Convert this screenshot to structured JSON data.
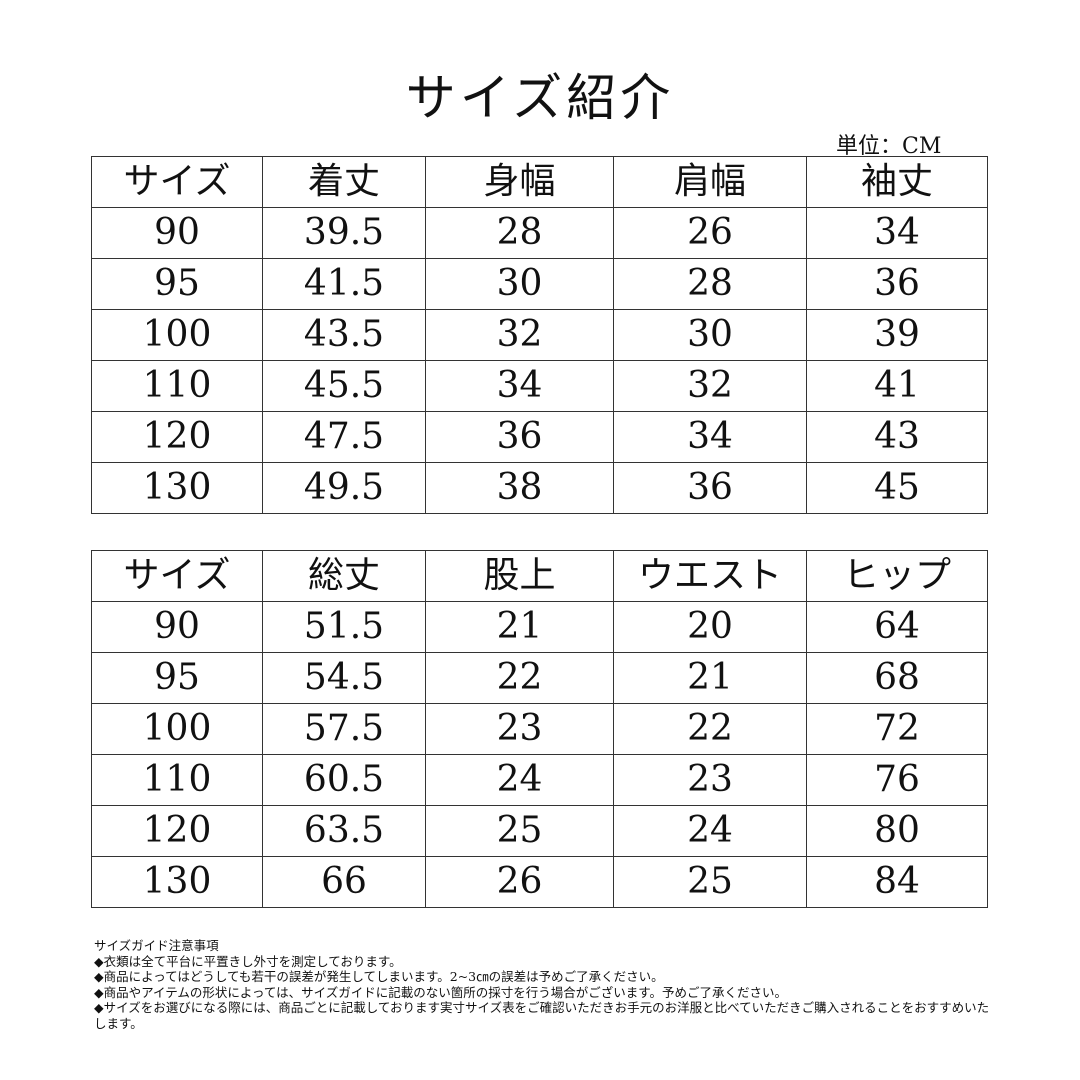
{
  "title": "サイズ紹介",
  "unit": "単位：CM",
  "table1": {
    "headers": [
      "サイズ",
      "着丈",
      "身幅",
      "肩幅",
      "袖丈"
    ],
    "rows": [
      [
        "90",
        "39.5",
        "28",
        "26",
        "34"
      ],
      [
        "95",
        "41.5",
        "30",
        "28",
        "36"
      ],
      [
        "100",
        "43.5",
        "32",
        "30",
        "39"
      ],
      [
        "110",
        "45.5",
        "34",
        "32",
        "41"
      ],
      [
        "120",
        "47.5",
        "36",
        "34",
        "43"
      ],
      [
        "130",
        "49.5",
        "38",
        "36",
        "45"
      ]
    ]
  },
  "table2": {
    "headers": [
      "サイズ",
      "総丈",
      "股上",
      "ウエスト",
      "ヒップ"
    ],
    "rows": [
      [
        "90",
        "51.5",
        "21",
        "20",
        "64"
      ],
      [
        "95",
        "54.5",
        "22",
        "21",
        "68"
      ],
      [
        "100",
        "57.5",
        "23",
        "22",
        "72"
      ],
      [
        "110",
        "60.5",
        "24",
        "23",
        "76"
      ],
      [
        "120",
        "63.5",
        "25",
        "24",
        "80"
      ],
      [
        "130",
        "66",
        "26",
        "25",
        "84"
      ]
    ]
  },
  "notes": [
    "サイズガイド注意事項",
    "◆衣類は全て平台に平置きし外寸を測定しております。",
    "◆商品によってはどうしても若干の誤差が発生してしまいます。2~3㎝の誤差は予めご了承ください。",
    "◆商品やアイテムの形状によっては、サイズガイドに記載のない箇所の採寸を行う場合がございます。予めご了承ください。",
    "◆サイズをお選びになる際には、商品ごとに記載しております実寸サイズ表をご確認いただきお手元のお洋服と比べていただきご購入されることをおすすめいたします。"
  ]
}
